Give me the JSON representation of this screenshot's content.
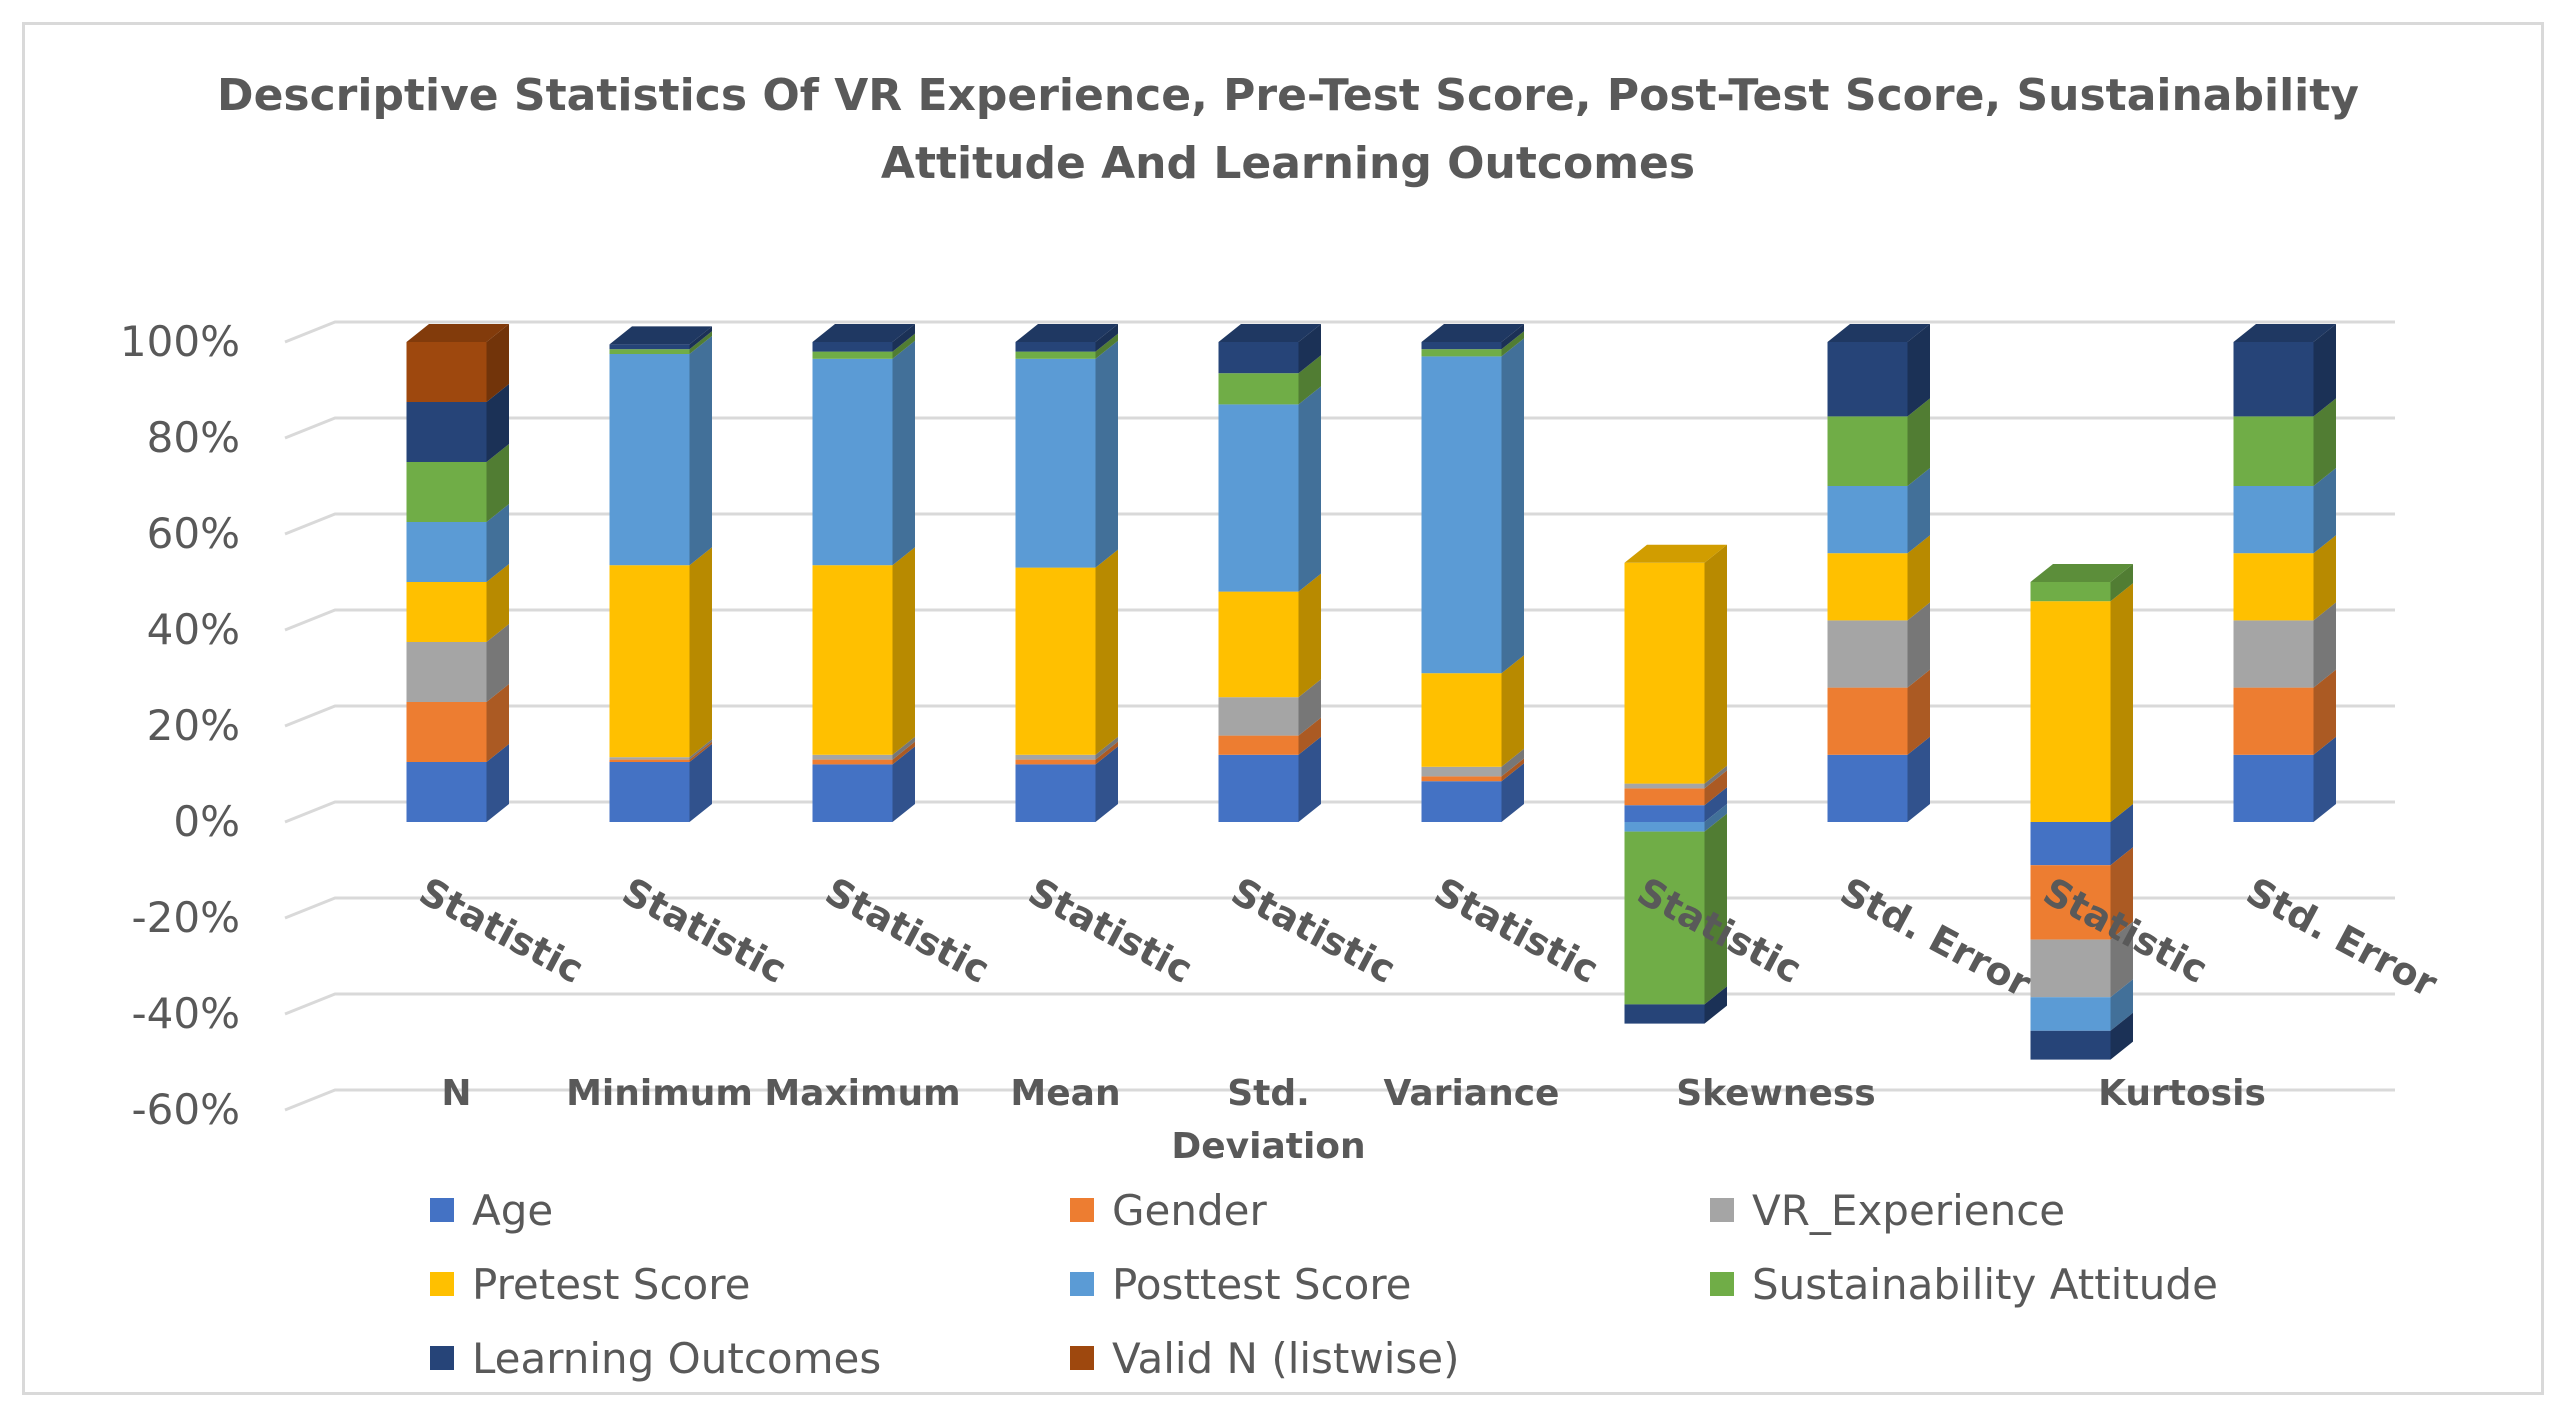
{
  "chart_data": {
    "type": "bar",
    "stacked": "100%",
    "title": "Descriptive Statistics Of VR Experience, Pre-Test Score, Post-Test Score, Sustainability Attitude And Learning Outcomes",
    "title_lines": [
      "Descriptive Statistics Of VR Experience, Pre-Test Score, Post-Test Score, Sustainability",
      "Attitude And Learning Outcomes"
    ],
    "ylim": [
      -60,
      100
    ],
    "y_ticks": [
      "100%",
      "80%",
      "60%",
      "40%",
      "20%",
      "0%",
      "-20%",
      "-40%",
      "-60%"
    ],
    "grid": true,
    "legend_position": "bottom",
    "categories": [
      {
        "sub": "Statistic",
        "group": "N"
      },
      {
        "sub": "Statistic",
        "group": "Minimum"
      },
      {
        "sub": "Statistic",
        "group": "Maximum"
      },
      {
        "sub": "Statistic",
        "group": "Mean"
      },
      {
        "sub": "Statistic",
        "group": "Std. Deviation"
      },
      {
        "sub": "Statistic",
        "group": "Variance"
      },
      {
        "sub": "Statistic",
        "group": "Skewness"
      },
      {
        "sub": "Std. Error",
        "group": ""
      },
      {
        "sub": "Statistic",
        "group": "Kurtosis"
      },
      {
        "sub": "Std. Error",
        "group": ""
      }
    ],
    "group_labels": [
      {
        "text": "N",
        "at": 0
      },
      {
        "text": "Minimum",
        "at": 1
      },
      {
        "text": "Maximum",
        "at": 2
      },
      {
        "text": "Mean",
        "at": 3
      },
      {
        "text": "Std.",
        "at": 4
      },
      {
        "text": "Deviation",
        "at": 4,
        "second_line": true
      },
      {
        "text": "Variance",
        "at": 5
      },
      {
        "text": "Skewness",
        "at": 6.5
      },
      {
        "text": "Kurtosis",
        "at": 8.5
      }
    ],
    "series": [
      {
        "name": "Age",
        "color": "#4472c4",
        "values": [
          12.5,
          12.5,
          12,
          12,
          14,
          8.5,
          3.5,
          14,
          -9,
          14
        ]
      },
      {
        "name": "Gender",
        "color": "#ed7d31",
        "values": [
          12.5,
          0.5,
          1,
          1,
          4,
          1,
          3.5,
          14,
          -15.5,
          14
        ]
      },
      {
        "name": "VR_Experience",
        "color": "#a5a5a5",
        "values": [
          12.5,
          0.5,
          1,
          1,
          8,
          2,
          1,
          14,
          -12,
          14
        ]
      },
      {
        "name": "Pretest Score",
        "color": "#ffc000",
        "values": [
          12.5,
          40,
          39.5,
          39,
          22,
          19.5,
          46,
          14,
          46,
          14
        ]
      },
      {
        "name": "Posttest Score",
        "color": "#5b9bd5",
        "values": [
          12.5,
          44,
          43,
          43.5,
          39,
          66,
          -2,
          14,
          -7,
          14
        ]
      },
      {
        "name": "Sustainability Attitude",
        "color": "#70ad47",
        "values": [
          12.5,
          1,
          1.5,
          1.5,
          6.5,
          1.5,
          -36,
          14.5,
          4,
          14.5
        ]
      },
      {
        "name": "Learning Outcomes",
        "color": "#264478",
        "values": [
          12.5,
          1,
          2,
          2,
          6.5,
          1.5,
          -4,
          15.5,
          -6,
          15.5
        ]
      },
      {
        "name": "Valid N (listwise)",
        "color": "#9e480e",
        "values": [
          12.5,
          0,
          0,
          0,
          0,
          0,
          0,
          0,
          0,
          0
        ]
      }
    ]
  }
}
